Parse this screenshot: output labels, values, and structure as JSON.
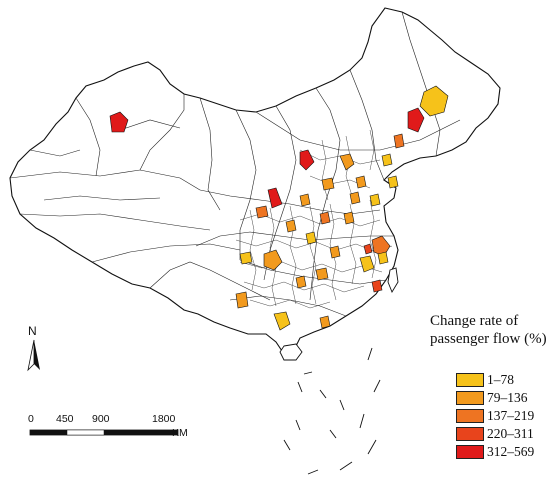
{
  "legend": {
    "title_line1": "Change rate of",
    "title_line2": "passenger flow (%)",
    "classes": [
      {
        "label": "1–78",
        "color": "#f6c21a"
      },
      {
        "label": "79–136",
        "color": "#f29a1e"
      },
      {
        "label": "137–219",
        "color": "#ee7422"
      },
      {
        "label": "220–311",
        "color": "#e8441c"
      },
      {
        "label": "312–569",
        "color": "#e01a1a"
      }
    ]
  },
  "north_arrow": {
    "label": "N"
  },
  "scale_bar": {
    "ticks": [
      "0",
      "450",
      "900",
      "1800"
    ],
    "unit": "KM"
  },
  "colors": {
    "boundary": "#111111",
    "land": "#ffffff"
  }
}
